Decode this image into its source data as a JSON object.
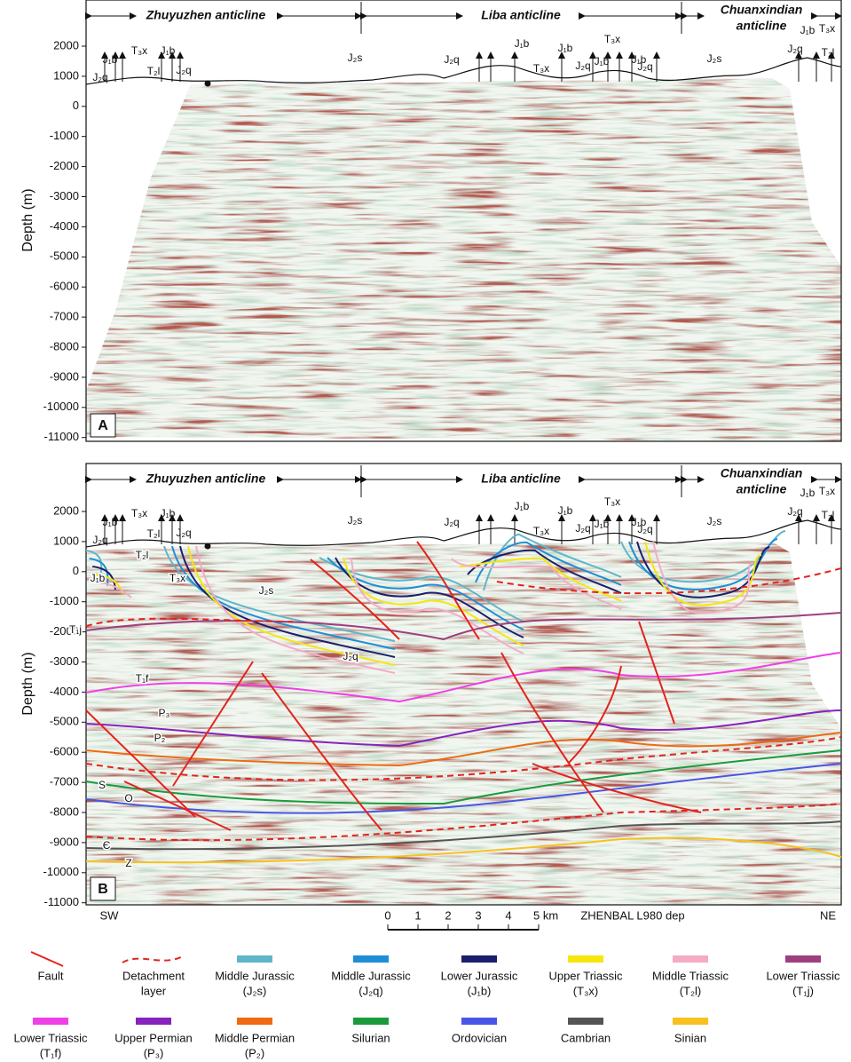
{
  "panels": [
    {
      "label": "A",
      "y_axis_label": "Depth (m)",
      "yticks": [
        2000,
        1000,
        0,
        -1000,
        -2000,
        -3000,
        -4000,
        -5000,
        -6000,
        -7000,
        -8000,
        -9000,
        -10000,
        -11000
      ],
      "anticlines": [
        [
          "Zhuyuzhen anticline"
        ],
        [
          "Liba anticline"
        ],
        [
          "Chuanxindian",
          "anticline"
        ]
      ],
      "formation_labels": [
        "J₂q",
        "J₁b",
        "T₃x",
        "T₂l",
        "J₁b",
        "J₂q",
        "J₂s",
        "J₂q",
        "J₁b",
        "T₃x",
        "J₁b",
        "J₂q",
        "T₃x",
        "J₁b",
        "J₁b",
        "J₂q",
        "J₂s",
        "J₂q",
        "J₁b",
        "T₃x",
        "T₂l"
      ]
    },
    {
      "label": "B",
      "y_axis_label": "Depth (m)",
      "yticks": [
        2000,
        1000,
        0,
        -1000,
        -2000,
        -3000,
        -4000,
        -5000,
        -6000,
        -7000,
        -8000,
        -9000,
        -10000,
        -11000
      ],
      "anticlines": [
        [
          "Zhuyuzhen anticline"
        ],
        [
          "Liba anticline"
        ],
        [
          "Chuanxindian",
          "anticline"
        ]
      ],
      "formation_labels": [
        "J₂q",
        "J₁b",
        "T₃x",
        "T₂l",
        "J₁b",
        "J₂q",
        "J₂s",
        "J₂q",
        "J₁b",
        "T₃x",
        "J₁b",
        "J₂q",
        "T₃x",
        "J₁b",
        "J₁b",
        "J₂q",
        "J₂s",
        "J₂q",
        "J₁b",
        "T₃x",
        "T₂l"
      ],
      "horizon_labels": [
        "J₂s",
        "J₂q",
        "T₂l",
        "J₁b",
        "T₃x",
        "T₁j",
        "T₁f",
        "P₃",
        "P₂",
        "S",
        "O",
        "Є",
        "Z"
      ],
      "side_labels": [
        "SW",
        "NE"
      ],
      "line_name": "ZHENBAL L980 dep"
    }
  ],
  "scale_bar": {
    "ticks": [
      "0",
      "1",
      "2",
      "3",
      "4",
      "5 km"
    ]
  },
  "legend": [
    {
      "label": [
        "Fault"
      ],
      "color": "#e3231d",
      "style": "fault"
    },
    {
      "label": [
        "Detachment",
        "layer"
      ],
      "color": "#e3231d",
      "style": "dashed"
    },
    {
      "label": [
        "Middle Jurassic",
        "(J₂s)"
      ],
      "color": "#5fb6c9"
    },
    {
      "label": [
        "Middle Jurassic",
        "(J₂q)"
      ],
      "color": "#1e8fd6"
    },
    {
      "label": [
        "Lower Jurassic",
        "(J₁b)"
      ],
      "color": "#1b1f6b"
    },
    {
      "label": [
        "Upper Triassic",
        "(T₃x)"
      ],
      "color": "#f6e60c"
    },
    {
      "label": [
        "Middle Triassic",
        "(T₂l)"
      ],
      "color": "#f4abc6"
    },
    {
      "label": [
        "Lower Triassic",
        "(T₁j)"
      ],
      "color": "#9d3f7f"
    },
    {
      "label": [
        "Lower Triassic",
        "(T₁f)"
      ],
      "color": "#ef3fe6"
    },
    {
      "label": [
        "Upper Permian",
        "(P₃)"
      ],
      "color": "#8722bf"
    },
    {
      "label": [
        "Middle Permian",
        "(P₂)"
      ],
      "color": "#ef6a12"
    },
    {
      "label": [
        "Silurian"
      ],
      "color": "#1a9b3b"
    },
    {
      "label": [
        "Ordovician"
      ],
      "color": "#4955e6"
    },
    {
      "label": [
        "Cambrian"
      ],
      "color": "#555555"
    },
    {
      "label": [
        "Sinian"
      ],
      "color": "#f7c11f"
    }
  ]
}
